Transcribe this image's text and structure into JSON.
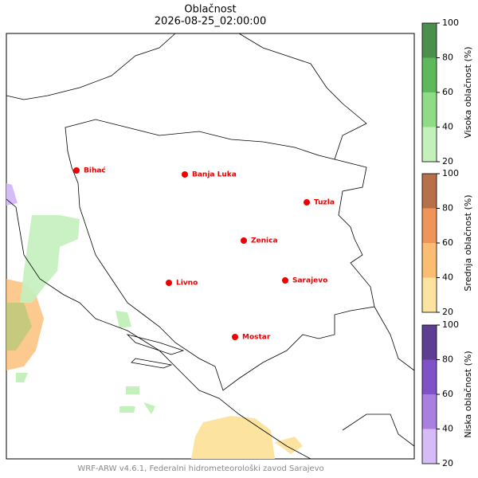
{
  "title": "Oblačnost",
  "timestamp": "2026-08-25_02:00:00",
  "cities": [
    "Bihać",
    "Banja Luka",
    "Tuzla",
    "Zenica",
    "Livno",
    "Sarajevo",
    "Mostar"
  ],
  "colorbars": [
    {
      "label": "Visoka oblačnost (%)",
      "ticks": [
        20,
        40,
        60,
        80,
        100
      ],
      "colors": [
        "#c4f0bc",
        "#8edc86",
        "#5db95b",
        "#4a8f4c"
      ]
    },
    {
      "label": "Srednja oblačnost (%)",
      "ticks": [
        20,
        40,
        60,
        80,
        100
      ],
      "colors": [
        "#fde3a0",
        "#fbbd72",
        "#ef955a",
        "#b8704a"
      ]
    },
    {
      "label": "Niska oblačnost (%)",
      "ticks": [
        20,
        40,
        60,
        80,
        100
      ],
      "colors": [
        "#d6bcf6",
        "#a97fe0",
        "#7f52c8",
        "#5d3e92"
      ]
    }
  ],
  "footer": "WRF-ARW v4.6.1, Federalni hidrometeorološki zavod Sarajevo"
}
